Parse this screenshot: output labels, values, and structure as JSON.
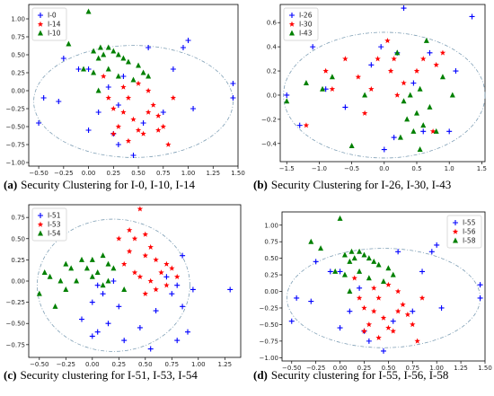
{
  "chart_data": [
    {
      "type": "scatter",
      "caption_label": "(a)",
      "caption": "Security Clustering for I-0, I-10, I-14",
      "legend": "upper left",
      "xlim": [
        -0.6,
        1.5
      ],
      "ylim": [
        -1.05,
        1.2
      ],
      "xticks": [
        {
          "value": -0.5,
          "label": "−0.50"
        },
        {
          "value": -0.25,
          "label": "−0.25"
        },
        {
          "value": 0,
          "label": "0.00"
        },
        {
          "value": 0.25,
          "label": "0.25"
        },
        {
          "value": 0.5,
          "label": "0.50"
        },
        {
          "value": 0.75,
          "label": "0.75"
        },
        {
          "value": 1,
          "label": "1.00"
        },
        {
          "value": 1.25,
          "label": "1.25"
        },
        {
          "value": 1.5,
          "label": "1.50"
        }
      ],
      "yticks": [
        {
          "value": -1,
          "label": "−1.00"
        },
        {
          "value": -0.75,
          "label": "−0.75"
        },
        {
          "value": -0.5,
          "label": "−0.50"
        },
        {
          "value": -0.25,
          "label": "−0.25"
        },
        {
          "value": 0,
          "label": "0.00"
        },
        {
          "value": 0.25,
          "label": "0.25"
        },
        {
          "value": 0.5,
          "label": "0.50"
        },
        {
          "value": 0.75,
          "label": "0.75"
        },
        {
          "value": 1,
          "label": "1.00"
        }
      ],
      "ellipse": {
        "cx": 0.45,
        "cy": -0.15,
        "rx": 1.0,
        "ry": 0.78
      },
      "series": [
        {
          "name": "I-0",
          "color": "#0000ff",
          "marker": "plus",
          "x": [
            -0.5,
            -0.45,
            -0.3,
            -0.25,
            -0.1,
            0.0,
            0.0,
            0.1,
            0.2,
            0.25,
            0.3,
            0.35,
            0.45,
            0.6,
            0.75,
            0.85,
            0.95,
            1.0,
            1.05,
            1.45,
            1.45,
            0.55,
            0.3
          ],
          "values": [
            -0.45,
            -0.1,
            -0.15,
            0.45,
            0.3,
            0.3,
            -0.55,
            -0.3,
            0.05,
            -0.6,
            -0.75,
            0.2,
            -0.9,
            0.6,
            -0.3,
            0.3,
            0.6,
            0.7,
            -0.25,
            0.1,
            -0.1,
            -0.45,
            -0.2
          ]
        },
        {
          "name": "I-14",
          "color": "#ff0000",
          "marker": "star",
          "x": [
            0.15,
            0.2,
            0.25,
            0.3,
            0.35,
            0.4,
            0.45,
            0.5,
            0.55,
            0.6,
            0.65,
            0.7,
            0.75,
            0.8,
            0.85,
            0.35,
            0.25,
            0.5,
            0.6,
            0.4,
            0.7
          ],
          "values": [
            0.2,
            -0.1,
            -0.25,
            -0.5,
            -0.3,
            -0.1,
            -0.4,
            0.1,
            -0.6,
            0.0,
            -0.2,
            -0.35,
            -0.5,
            -0.75,
            -0.1,
            0.05,
            -0.6,
            -0.55,
            -0.3,
            -0.7,
            -0.55
          ]
        },
        {
          "name": "I-10",
          "color": "#008000",
          "marker": "triangle",
          "x": [
            -0.3,
            -0.2,
            -0.05,
            0.0,
            0.05,
            0.1,
            0.12,
            0.15,
            0.2,
            0.25,
            0.3,
            0.35,
            0.4,
            0.45,
            0.5,
            0.55,
            0.6,
            0.05,
            0.1,
            0.3,
            0.2
          ],
          "values": [
            0.75,
            0.65,
            0.3,
            1.1,
            0.55,
            0.45,
            0.6,
            0.5,
            0.3,
            0.55,
            0.5,
            0.45,
            0.4,
            0.15,
            0.35,
            0.25,
            0.2,
            0.25,
            0.0,
            0.2,
            0.6
          ]
        }
      ]
    },
    {
      "type": "scatter",
      "caption_label": "(b)",
      "caption": "Security Clustering for I-26, I-30, I-43",
      "legend": "upper left",
      "xlim": [
        -1.6,
        1.55
      ],
      "ylim": [
        -0.55,
        0.75
      ],
      "xticks": [
        {
          "value": -1.5,
          "label": "−1.5"
        },
        {
          "value": -1,
          "label": "−1.0"
        },
        {
          "value": -0.5,
          "label": "−0.5"
        },
        {
          "value": 0,
          "label": "0.0"
        },
        0.5,
        {
          "value": 1,
          "label": "1.0"
        },
        1.5
      ],
      "yticks": [
        {
          "value": -0.4,
          "label": "−0.4"
        },
        {
          "value": -0.2,
          "label": "−0.2"
        },
        {
          "value": 0,
          "label": "0.0"
        },
        0.2,
        0.4,
        0.6
      ],
      "ellipse": {
        "cx": 0.0,
        "cy": 0.0,
        "rx": 1.55,
        "ry": 0.52
      },
      "series": [
        {
          "name": "I-26",
          "color": "#0000ff",
          "marker": "plus",
          "x": [
            0.3,
            1.35,
            -1.1,
            -0.05,
            0.7,
            1.1,
            -0.9,
            0.2,
            -0.2,
            -1.3,
            0.0,
            -0.6,
            0.6,
            1.0,
            -1.5,
            0.15,
            0.45
          ],
          "values": [
            0.72,
            0.65,
            0.4,
            0.4,
            0.35,
            0.2,
            0.05,
            0.35,
            0.25,
            -0.25,
            -0.45,
            -0.1,
            -0.3,
            -0.3,
            0.0,
            -0.35,
            0.1
          ]
        },
        {
          "name": "I-30",
          "color": "#ff0000",
          "marker": "star",
          "x": [
            -1.2,
            -0.9,
            -0.6,
            -0.4,
            -0.2,
            -0.1,
            0.05,
            0.1,
            0.2,
            0.3,
            0.5,
            0.6,
            0.8,
            0.9,
            0.75,
            -0.8,
            -0.3,
            0.15
          ],
          "values": [
            -0.25,
            0.2,
            0.3,
            0.15,
            0.05,
            0.3,
            0.45,
            0.2,
            0.0,
            0.1,
            0.2,
            0.3,
            0.25,
            0.35,
            -0.3,
            0.05,
            -0.15,
            0.3
          ]
        },
        {
          "name": "I-43",
          "color": "#008000",
          "marker": "triangle",
          "x": [
            -1.5,
            -1.2,
            -0.95,
            -0.8,
            -0.5,
            -0.3,
            0.2,
            0.3,
            0.35,
            0.4,
            0.45,
            0.5,
            0.55,
            0.6,
            0.7,
            0.8,
            0.9,
            1.05,
            0.65,
            0.25,
            0.55
          ],
          "values": [
            -0.05,
            0.1,
            0.05,
            0.15,
            -0.42,
            0.0,
            0.35,
            -0.05,
            -0.2,
            0.0,
            -0.3,
            -0.15,
            0.05,
            -0.25,
            -0.1,
            -0.3,
            0.15,
            0.0,
            0.45,
            -0.35,
            -0.45
          ]
        }
      ]
    },
    {
      "type": "scatter",
      "caption_label": "(c)",
      "caption": "Security clustering for I-51, I-53, I-54",
      "legend": "upper left",
      "xlim": [
        -0.6,
        1.4
      ],
      "ylim": [
        -0.9,
        0.9
      ],
      "xticks": [
        {
          "value": -0.5,
          "label": "−0.50"
        },
        {
          "value": -0.25,
          "label": "−0.25"
        },
        {
          "value": 0,
          "label": "0.00"
        },
        {
          "value": 0.25,
          "label": "0.25"
        },
        {
          "value": 0.5,
          "label": "0.50"
        },
        {
          "value": 0.75,
          "label": "0.75"
        },
        {
          "value": 1,
          "label": "1.00"
        },
        {
          "value": 1.25,
          "label": "1.25"
        }
      ],
      "yticks": [
        {
          "value": -0.75,
          "label": "−0.75"
        },
        {
          "value": -0.5,
          "label": "−0.50"
        },
        {
          "value": -0.25,
          "label": "−0.25"
        },
        {
          "value": 0,
          "label": "0.00"
        },
        {
          "value": 0.25,
          "label": "0.25"
        },
        {
          "value": 0.5,
          "label": "0.50"
        },
        {
          "value": 0.75,
          "label": "0.75"
        }
      ],
      "ellipse": {
        "cx": 0.2,
        "cy": -0.05,
        "rx": 0.72,
        "ry": 0.78
      },
      "series": [
        {
          "name": "I-51",
          "color": "#0000ff",
          "marker": "plus",
          "x": [
            -0.1,
            0.0,
            0.05,
            0.05,
            0.1,
            0.15,
            0.2,
            0.25,
            0.3,
            0.45,
            0.55,
            0.6,
            0.75,
            0.8,
            0.85,
            0.85,
            0.9,
            0.95,
            0.7,
            1.3,
            0.8,
            0.0
          ],
          "values": [
            -0.45,
            -0.25,
            -0.05,
            -0.6,
            -0.15,
            -0.5,
            0.0,
            -0.3,
            -0.7,
            -0.55,
            -0.8,
            -0.35,
            -0.15,
            -0.05,
            0.3,
            -0.3,
            -0.6,
            -0.1,
            0.05,
            -0.1,
            -0.7,
            -0.65
          ]
        },
        {
          "name": "I-53",
          "color": "#ff0000",
          "marker": "star",
          "x": [
            0.25,
            0.3,
            0.35,
            0.4,
            0.45,
            0.5,
            0.55,
            0.6,
            0.65,
            0.7,
            0.75,
            0.6,
            0.5,
            0.45,
            0.4,
            0.35,
            0.55,
            0.7,
            0.8,
            0.5
          ],
          "values": [
            0.5,
            0.2,
            0.6,
            0.5,
            0.85,
            0.3,
            0.4,
            0.25,
            0.1,
            0.2,
            0.15,
            -0.1,
            -0.15,
            0.05,
            0.1,
            0.35,
            0.0,
            -0.05,
            0.05,
            0.55
          ]
        },
        {
          "name": "I-54",
          "color": "#008000",
          "marker": "triangle",
          "x": [
            -0.5,
            -0.45,
            -0.4,
            -0.35,
            -0.3,
            -0.25,
            -0.2,
            -0.15,
            -0.1,
            -0.05,
            0.0,
            0.0,
            0.05,
            0.1,
            0.1,
            0.15,
            0.2,
            0.15,
            -0.25,
            0.3
          ],
          "values": [
            -0.15,
            0.1,
            0.05,
            -0.3,
            0.0,
            0.2,
            0.15,
            0.0,
            0.25,
            0.15,
            0.05,
            0.25,
            0.1,
            0.3,
            -0.05,
            0.0,
            0.15,
            0.2,
            -0.1,
            -0.1
          ]
        }
      ]
    },
    {
      "type": "scatter",
      "caption_label": "(d)",
      "caption": "Security clustering for I-55, I-56, I-58",
      "legend": "upper right",
      "xlim": [
        -0.6,
        1.5
      ],
      "ylim": [
        -1.05,
        1.2
      ],
      "xticks": [
        {
          "value": -0.5,
          "label": "−0.50"
        },
        {
          "value": -0.25,
          "label": "−0.25"
        },
        {
          "value": 0,
          "label": "0.00"
        },
        {
          "value": 0.25,
          "label": "0.25"
        },
        {
          "value": 0.5,
          "label": "0.50"
        },
        {
          "value": 0.75,
          "label": "0.75"
        },
        {
          "value": 1,
          "label": "1.00"
        },
        {
          "value": 1.25,
          "label": "1.25"
        },
        {
          "value": 1.5,
          "label": "1.50"
        }
      ],
      "yticks": [
        {
          "value": -1,
          "label": "−1.00"
        },
        {
          "value": -0.75,
          "label": "−0.75"
        },
        {
          "value": -0.5,
          "label": "−0.50"
        },
        {
          "value": -0.25,
          "label": "−0.25"
        },
        {
          "value": 0,
          "label": "0.00"
        },
        {
          "value": 0.25,
          "label": "0.25"
        },
        {
          "value": 0.5,
          "label": "0.50"
        },
        {
          "value": 0.75,
          "label": "0.75"
        },
        {
          "value": 1,
          "label": "1.00"
        }
      ],
      "ellipse": {
        "cx": 0.45,
        "cy": -0.1,
        "rx": 1.0,
        "ry": 0.75
      },
      "series": [
        {
          "name": "I-55",
          "color": "#0000ff",
          "marker": "plus",
          "x": [
            -0.5,
            -0.45,
            -0.3,
            -0.25,
            -0.1,
            0.0,
            0.0,
            0.1,
            0.2,
            0.25,
            0.3,
            0.45,
            0.6,
            0.75,
            0.85,
            0.95,
            1.0,
            1.05,
            1.45,
            1.45,
            0.55
          ],
          "values": [
            -0.45,
            -0.1,
            -0.15,
            0.45,
            0.3,
            0.3,
            -0.55,
            -0.3,
            0.05,
            -0.6,
            -0.75,
            -0.9,
            0.6,
            -0.3,
            0.3,
            0.6,
            0.7,
            -0.25,
            0.1,
            -0.1,
            -0.45
          ]
        },
        {
          "name": "I-56",
          "color": "#ff0000",
          "marker": "star",
          "x": [
            0.15,
            0.2,
            0.25,
            0.3,
            0.35,
            0.4,
            0.45,
            0.5,
            0.55,
            0.6,
            0.65,
            0.7,
            0.75,
            0.8,
            0.85,
            0.35,
            0.25,
            0.5,
            0.6,
            0.4
          ],
          "values": [
            0.2,
            -0.1,
            -0.25,
            -0.5,
            -0.3,
            -0.1,
            -0.4,
            0.1,
            -0.6,
            0.0,
            -0.2,
            -0.35,
            -0.5,
            -0.75,
            -0.1,
            0.05,
            -0.6,
            -0.55,
            -0.3,
            -0.7
          ]
        },
        {
          "name": "I-58",
          "color": "#008000",
          "marker": "triangle",
          "x": [
            -0.3,
            -0.2,
            -0.05,
            0.0,
            0.05,
            0.1,
            0.12,
            0.15,
            0.2,
            0.25,
            0.3,
            0.35,
            0.4,
            0.45,
            0.5,
            0.55,
            0.05,
            0.1,
            0.3,
            0.2
          ],
          "values": [
            0.75,
            0.65,
            0.3,
            1.1,
            0.55,
            0.45,
            0.6,
            0.5,
            0.3,
            0.55,
            0.5,
            0.45,
            0.4,
            0.15,
            0.35,
            0.25,
            0.25,
            0.0,
            0.2,
            0.6
          ]
        }
      ]
    }
  ]
}
